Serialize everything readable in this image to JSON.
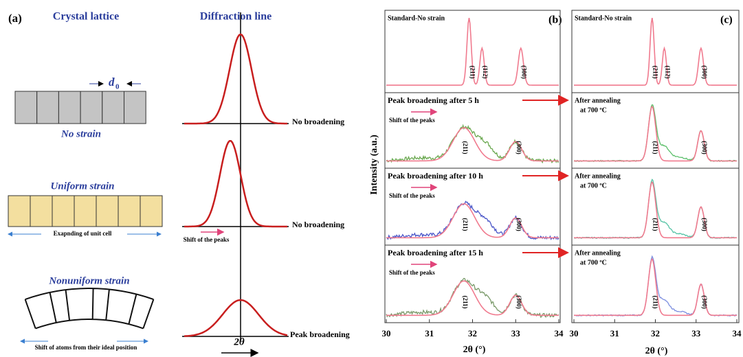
{
  "panel_a": {
    "label": "(a)",
    "lattice_title": "Crystal lattice",
    "diffraction_title": "Diffraction line",
    "spacing_symbol": "d",
    "spacing_subscript": "0",
    "x_symbol": "2θ",
    "rows": [
      {
        "name": "No strain",
        "result": "No broadening"
      },
      {
        "name": "Uniform strain",
        "note": "Exapnding of unit cell",
        "result": "No broadening",
        "shift": "Shift of the peaks"
      },
      {
        "name": "Nonuniform strain",
        "note": "Shift of atoms from their ideal position",
        "result": "Peak broadening"
      }
    ]
  },
  "panel_b": {
    "label": "(b)",
    "y_label": "Intensity (a.u.)",
    "x_label": "2θ (°)",
    "xlim": [
      30,
      34
    ],
    "xticks": [
      30,
      31,
      32,
      33,
      34
    ],
    "rows": [
      {
        "title": "Standard-No strain",
        "peaks": [
          "(211)",
          "(112)",
          "(300)"
        ]
      },
      {
        "title": "Peak broadening after 5 h",
        "shift": "Shift of the peaks",
        "peaks": [
          "(211)",
          "(300)"
        ]
      },
      {
        "title": "Peak broadening after 10 h",
        "shift": "Shift of the peaks",
        "peaks": [
          "(211)",
          "(300)"
        ]
      },
      {
        "title": "Peak broadening after 15 h",
        "shift": "Shift of the peaks",
        "peaks": [
          "(211)",
          "(300)"
        ]
      }
    ]
  },
  "panel_c": {
    "label": "(c)",
    "x_label": "2θ (°)",
    "xlim": [
      30,
      34
    ],
    "xticks": [
      30,
      31,
      32,
      33,
      34
    ],
    "rows": [
      {
        "title": "Standard-No strain",
        "peaks": [
          "(211)",
          "(112)",
          "(300)"
        ]
      },
      {
        "title": "After annealing",
        "subtitle": "at 700 ºC",
        "peaks": [
          "(211)",
          "(300)"
        ]
      },
      {
        "title": "After annealing",
        "subtitle": "at 700 ºC",
        "peaks": [
          "(211)",
          "(300)"
        ]
      },
      {
        "title": "After annealing",
        "subtitle": "at 700 ºC",
        "peaks": [
          "(211)",
          "(300)"
        ]
      }
    ]
  }
}
